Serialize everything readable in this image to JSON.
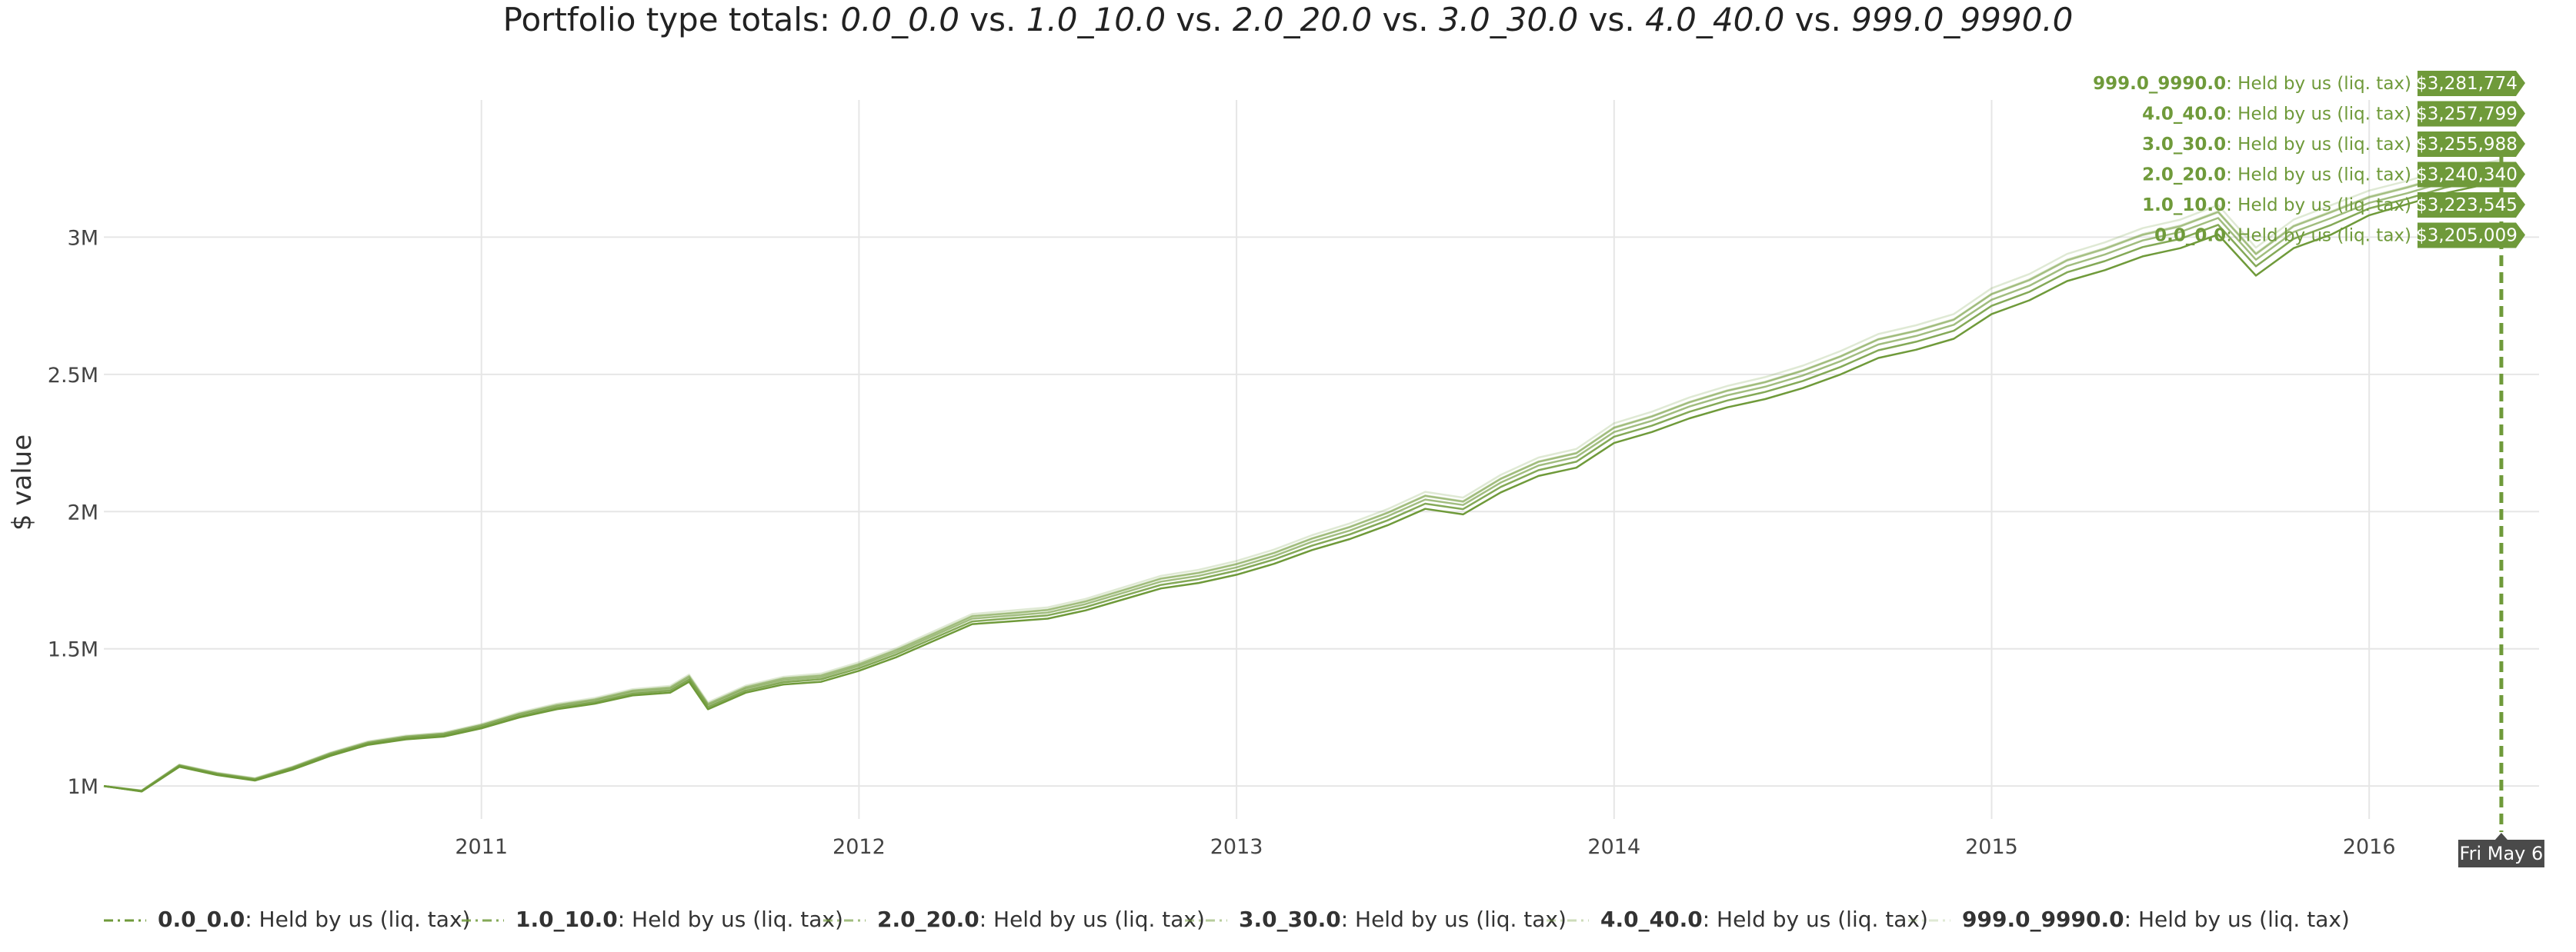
{
  "title": {
    "prefix": "Portfolio type totals: ",
    "names": [
      "0.0_0.0",
      "1.0_10.0",
      "2.0_20.0",
      "3.0_30.0",
      "4.0_40.0",
      "999.0_9990.0"
    ],
    "sep": " vs. "
  },
  "colors": {
    "series": "#6f9a3a",
    "tooltip_bg": "#6f9a3a",
    "crosshair_label_bg": "#4a4a4a",
    "grid": "#e6e6e6"
  },
  "chart_data": {
    "type": "line",
    "title": "Portfolio type totals: 0.0_0.0 vs. 1.0_10.0 vs. 2.0_20.0 vs. 3.0_30.0 vs. 4.0_40.0 vs. 999.0_9990.0",
    "ylabel": "$ value",
    "xlabel": "",
    "xlim": [
      2010.0,
      2016.45
    ],
    "ylim": [
      880000,
      3500000
    ],
    "grid": true,
    "legend_position": "bottom",
    "x_ticks": [
      {
        "value": 2011,
        "label": "2011"
      },
      {
        "value": 2012,
        "label": "2012"
      },
      {
        "value": 2013,
        "label": "2013"
      },
      {
        "value": 2014,
        "label": "2014"
      },
      {
        "value": 2015,
        "label": "2015"
      },
      {
        "value": 2016,
        "label": "2016"
      }
    ],
    "y_ticks": [
      {
        "value": 1000000,
        "label": "1M"
      },
      {
        "value": 1500000,
        "label": "1.5M"
      },
      {
        "value": 2000000,
        "label": "2M"
      },
      {
        "value": 2500000,
        "label": "2.5M"
      },
      {
        "value": 3000000,
        "label": "3M"
      }
    ],
    "x": [
      2010.0,
      2010.1,
      2010.2,
      2010.3,
      2010.4,
      2010.5,
      2010.6,
      2010.7,
      2010.8,
      2010.9,
      2011.0,
      2011.1,
      2011.2,
      2011.3,
      2011.4,
      2011.5,
      2011.55,
      2011.6,
      2011.7,
      2011.8,
      2011.9,
      2012.0,
      2012.1,
      2012.2,
      2012.3,
      2012.4,
      2012.5,
      2012.6,
      2012.7,
      2012.8,
      2012.9,
      2013.0,
      2013.1,
      2013.2,
      2013.3,
      2013.4,
      2013.5,
      2013.6,
      2013.7,
      2013.8,
      2013.9,
      2014.0,
      2014.1,
      2014.2,
      2014.3,
      2014.4,
      2014.5,
      2014.6,
      2014.7,
      2014.8,
      2014.9,
      2015.0,
      2015.1,
      2015.2,
      2015.3,
      2015.4,
      2015.5,
      2015.6,
      2015.7,
      2015.8,
      2015.9,
      2016.0,
      2016.1,
      2016.2,
      2016.35
    ],
    "series": [
      {
        "name": "0.0_0.0",
        "description": "Held by us (liq. tax)",
        "last_value_label": "$3,205,009",
        "values": [
          1000000,
          980000,
          1070000,
          1040000,
          1020000,
          1060000,
          1110000,
          1150000,
          1170000,
          1180000,
          1210000,
          1250000,
          1280000,
          1300000,
          1330000,
          1340000,
          1380000,
          1280000,
          1340000,
          1370000,
          1380000,
          1420000,
          1470000,
          1530000,
          1590000,
          1600000,
          1610000,
          1640000,
          1680000,
          1720000,
          1740000,
          1770000,
          1810000,
          1860000,
          1900000,
          1950000,
          2010000,
          1990000,
          2070000,
          2130000,
          2160000,
          2250000,
          2290000,
          2340000,
          2380000,
          2410000,
          2450000,
          2500000,
          2560000,
          2590000,
          2630000,
          2720000,
          2770000,
          2840000,
          2880000,
          2930000,
          2960000,
          3010000,
          2860000,
          2960000,
          3010000,
          3080000,
          3120000,
          3160000,
          3205009
        ]
      },
      {
        "name": "1.0_10.0",
        "description": "Held by us (liq. tax)",
        "last_value_label": "$3,223,545",
        "values": [
          1000000,
          981000,
          1072000,
          1042000,
          1022000,
          1063000,
          1113000,
          1153000,
          1173000,
          1184000,
          1214000,
          1254000,
          1285000,
          1305000,
          1336000,
          1347000,
          1387000,
          1287000,
          1347000,
          1378000,
          1389000,
          1429000,
          1480000,
          1540000,
          1600000,
          1611000,
          1622000,
          1652000,
          1693000,
          1733000,
          1754000,
          1785000,
          1826000,
          1876000,
          1917000,
          1968000,
          2029000,
          2009000,
          2090000,
          2151000,
          2182000,
          2273000,
          2313000,
          2364000,
          2405000,
          2436000,
          2476000,
          2527000,
          2588000,
          2619000,
          2659000,
          2750000,
          2801000,
          2872000,
          2913000,
          2964000,
          2994000,
          3045000,
          2894000,
          2994000,
          3045000,
          3105000,
          3140000,
          3180000,
          3223545
        ]
      },
      {
        "name": "2.0_20.0",
        "description": "Held by us (liq. tax)",
        "last_value_label": "$3,240,340",
        "values": [
          1000000,
          982000,
          1074000,
          1044000,
          1024000,
          1066000,
          1116000,
          1156000,
          1177000,
          1188000,
          1218000,
          1259000,
          1290000,
          1310000,
          1342000,
          1353000,
          1393000,
          1293000,
          1354000,
          1385000,
          1396000,
          1437000,
          1488000,
          1549000,
          1610000,
          1621000,
          1632000,
          1663000,
          1704000,
          1745000,
          1766000,
          1797000,
          1838000,
          1890000,
          1931000,
          1983000,
          2044000,
          2024000,
          2106000,
          2168000,
          2199000,
          2290000,
          2331000,
          2383000,
          2424000,
          2455000,
          2496000,
          2548000,
          2609000,
          2640000,
          2681000,
          2772000,
          2823000,
          2895000,
          2937000,
          2988000,
          3019000,
          3070000,
          2918000,
          3019000,
          3070000,
          3125000,
          3160000,
          3200000,
          3240340
        ]
      },
      {
        "name": "3.0_30.0",
        "description": "Held by us (liq. tax)",
        "last_value_label": "$3,255,988",
        "values": [
          1000000,
          983000,
          1076000,
          1046000,
          1026000,
          1068000,
          1119000,
          1159000,
          1180000,
          1191000,
          1222000,
          1263000,
          1294000,
          1315000,
          1347000,
          1358000,
          1399000,
          1298000,
          1359000,
          1391000,
          1402000,
          1443000,
          1495000,
          1556000,
          1618000,
          1629000,
          1641000,
          1672000,
          1713000,
          1755000,
          1776000,
          1808000,
          1849000,
          1901000,
          1943000,
          1995000,
          2057000,
          2036000,
          2119000,
          2181000,
          2212000,
          2305000,
          2346000,
          2398000,
          2440000,
          2471000,
          2513000,
          2565000,
          2627000,
          2658000,
          2699000,
          2792000,
          2843000,
          2915000,
          2957000,
          3008000,
          3039000,
          3091000,
          2938000,
          3039000,
          3091000,
          3145000,
          3180000,
          3220000,
          3255988
        ]
      },
      {
        "name": "4.0_40.0",
        "description": "Held by us (liq. tax)",
        "last_value_label": "$3,257,799",
        "values": [
          1000000,
          983500,
          1077000,
          1047000,
          1027000,
          1069000,
          1120000,
          1160000,
          1181000,
          1192000,
          1223000,
          1264000,
          1296000,
          1316000,
          1348000,
          1360000,
          1401000,
          1300000,
          1361000,
          1393000,
          1404000,
          1445000,
          1497000,
          1558000,
          1620000,
          1631000,
          1643000,
          1674000,
          1715000,
          1757000,
          1778000,
          1810000,
          1851000,
          1903000,
          1945000,
          1997000,
          2059000,
          2038000,
          2121000,
          2183000,
          2214000,
          2307000,
          2348000,
          2400000,
          2442000,
          2473000,
          2515000,
          2567000,
          2629000,
          2660000,
          2701000,
          2794000,
          2846000,
          2918000,
          2960000,
          3011000,
          3042000,
          3094000,
          2941000,
          3042000,
          3094000,
          3148000,
          3183000,
          3222000,
          3257799
        ]
      },
      {
        "name": "999.0_9990.0",
        "description": "Held by us (liq. tax)",
        "last_value_label": "$3,281,774",
        "values": [
          1000000,
          984000,
          1078000,
          1049000,
          1029000,
          1071000,
          1122000,
          1163000,
          1184000,
          1195000,
          1226000,
          1268000,
          1300000,
          1321000,
          1353000,
          1365000,
          1406000,
          1305000,
          1366000,
          1398000,
          1410000,
          1451000,
          1503000,
          1565000,
          1627000,
          1639000,
          1651000,
          1682000,
          1724000,
          1766000,
          1788000,
          1820000,
          1862000,
          1914000,
          1957000,
          2009000,
          2072000,
          2051000,
          2134000,
          2197000,
          2228000,
          2322000,
          2364000,
          2416000,
          2458000,
          2490000,
          2532000,
          2585000,
          2647000,
          2679000,
          2720000,
          2814000,
          2866000,
          2939000,
          2981000,
          3033000,
          3064000,
          3117000,
          2962000,
          3064000,
          3117000,
          3170000,
          3205000,
          3245000,
          3281774
        ]
      }
    ],
    "crosshair": {
      "x": 2016.35,
      "label": "Fri May  6"
    }
  },
  "tooltip_order": [
    5,
    4,
    3,
    2,
    1,
    0
  ]
}
